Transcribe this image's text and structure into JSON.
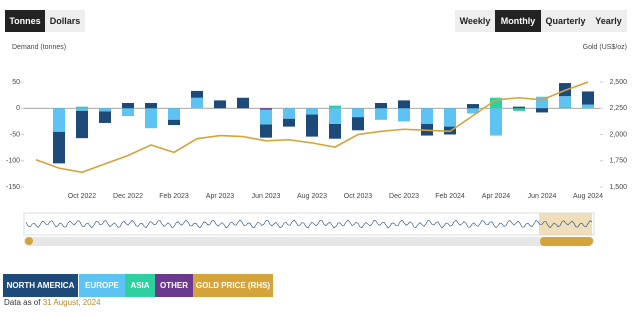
{
  "controls": {
    "units": [
      "Tonnes",
      "Dollars"
    ],
    "periods": [
      "Weekly",
      "Monthly",
      "Quarterly",
      "Yearly"
    ]
  },
  "chart_data": {
    "type": "bar",
    "ylabel": "Demand (tonnes)",
    "y2label": "Gold (US$/oz)",
    "categories": [
      null,
      null,
      "Oct 2022",
      null,
      "Dec 2022",
      null,
      "Feb 2023",
      null,
      "Apr 2023",
      null,
      "Jun 2023",
      null,
      "Aug 2023",
      null,
      "Oct 2023",
      null,
      "Dec 2023",
      null,
      "Feb 2024",
      null,
      "Apr 2024",
      null,
      "Jun 2024",
      null,
      "Aug 2024"
    ],
    "ylim": [
      -150,
      50
    ],
    "yticks": [
      50,
      0,
      -50,
      -100,
      -150
    ],
    "y2lim": [
      1500,
      2500
    ],
    "y2ticks": [
      {
        "value": 2500,
        "label": "2,500"
      },
      {
        "value": 2250,
        "label": "2,250"
      },
      {
        "value": 2000,
        "label": "2,000"
      },
      {
        "value": 1750,
        "label": "1,750"
      },
      {
        "value": 1500,
        "label": "1,500"
      }
    ],
    "grid": false,
    "stacked": true,
    "series": [
      {
        "name": "NORTH AMERICA",
        "color": "#1e4a7a",
        "values": [
          0,
          -60,
          -52,
          -22,
          10,
          10,
          -10,
          13,
          15,
          20,
          -25,
          -15,
          -42,
          -28,
          -25,
          10,
          15,
          -22,
          -15,
          8,
          0,
          3,
          -8,
          25,
          25
        ]
      },
      {
        "name": "EUROPE",
        "color": "#5cc3f2",
        "values": [
          0,
          -45,
          -5,
          -6,
          -15,
          -38,
          -22,
          20,
          0,
          0,
          -28,
          -20,
          -12,
          -30,
          -17,
          -22,
          -25,
          -30,
          -35,
          -10,
          -52,
          0,
          22,
          20,
          5
        ]
      },
      {
        "name": "ASIA",
        "color": "#2fd0a0",
        "values": [
          0,
          0,
          3,
          0,
          0,
          0,
          0,
          0,
          0,
          0,
          0,
          0,
          0,
          5,
          0,
          0,
          0,
          0,
          0,
          0,
          20,
          -5,
          0,
          3,
          2
        ]
      },
      {
        "name": "OTHER",
        "color": "#6b3a8e",
        "values": [
          0,
          0,
          0,
          0,
          0,
          0,
          0,
          0,
          0,
          0,
          -3,
          0,
          0,
          0,
          0,
          0,
          0,
          0,
          0,
          0,
          0,
          0,
          0,
          0,
          0
        ]
      },
      {
        "name": "GOLD PRICE (RHS)",
        "color": "#d4a43a",
        "axis": "y2",
        "type": "line",
        "values": [
          1760,
          1680,
          1640,
          1720,
          1800,
          1900,
          1830,
          1960,
          1990,
          1980,
          1940,
          1950,
          1920,
          1880,
          2000,
          2030,
          2050,
          2040,
          2030,
          2180,
          2330,
          2350,
          2330,
          2420,
          2500
        ]
      }
    ]
  },
  "footer": {
    "label": "Data as of",
    "date": "31 August, 2024"
  }
}
